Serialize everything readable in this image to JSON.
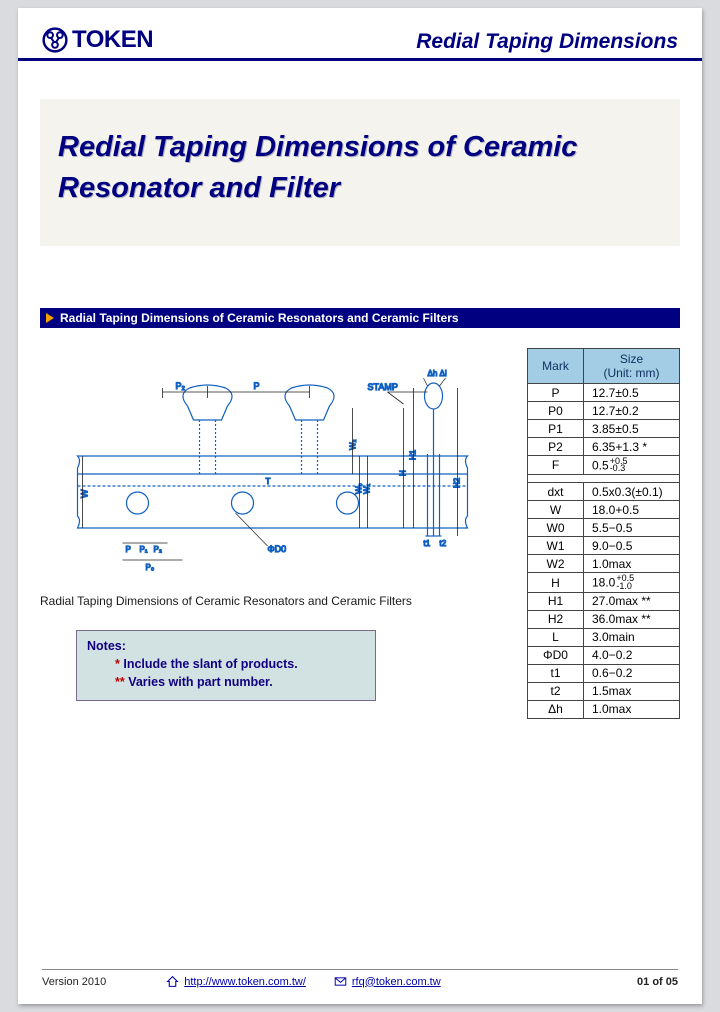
{
  "header": {
    "company": "TOKEN",
    "right": "Redial Taping Dimensions"
  },
  "title": "Redial Taping Dimensions of Ceramic Resonator and Filter",
  "section_bar": "Radial Taping Dimensions of Ceramic Resonators and Ceramic Filters",
  "diagram": {
    "stamp_label": "STAMP",
    "dim_labels": [
      "P₂",
      "P",
      "Δh",
      "Δl",
      "W",
      "W₂",
      "H1",
      "W₀",
      "W₁",
      "T",
      "H",
      "H2",
      "P",
      "P₁",
      "P₂",
      "ΦD0",
      "P₀",
      "t1",
      "t2"
    ],
    "line_color": "#1060c0",
    "text_color": "#1a1a1a",
    "bg": "#ffffff"
  },
  "caption": "Radial Taping Dimensions of Ceramic Resonators and Ceramic Filters",
  "notes": {
    "title": "Notes:",
    "line1_marker": "*",
    "line1": " Include the slant of products.",
    "line2_marker": "**",
    "line2": " Varies with part number."
  },
  "table": {
    "header": [
      "Mark",
      "Size (Unit: mm)"
    ],
    "header_sub": "(Unit: mm)",
    "header_main": "Size",
    "rows_a": [
      [
        "P",
        "12.7±0.5"
      ],
      [
        "P0",
        "12.7±0.2"
      ],
      [
        "P1",
        "3.85±0.5"
      ],
      [
        "P2",
        "6.35+1.3 *"
      ],
      [
        "F",
        "0.5 +0.5/-0.3"
      ]
    ],
    "rows_b": [
      [
        "dxt",
        "0.5x0.3(±0.1)"
      ],
      [
        "W",
        "18.0+0.5"
      ],
      [
        "W0",
        "5.5−0.5"
      ],
      [
        "W1",
        "9.0−0.5"
      ],
      [
        "W2",
        "1.0max"
      ],
      [
        "H",
        "18.0 +0.5/-1.0"
      ],
      [
        "H1",
        "27.0max **"
      ],
      [
        "H2",
        "36.0max **"
      ],
      [
        "L",
        "3.0main"
      ],
      [
        "ΦD0",
        "4.0−0.2"
      ],
      [
        "t1",
        "0.6−0.2"
      ],
      [
        "t2",
        "1.5max"
      ],
      [
        "Δh",
        "1.0max"
      ]
    ],
    "header_bg": "#a3cde4",
    "border": "#444444"
  },
  "footer": {
    "version": "Version 2010",
    "url": "http://www.token.com.tw/",
    "email": "rfq@token.com.tw",
    "page": "01 of 05"
  }
}
